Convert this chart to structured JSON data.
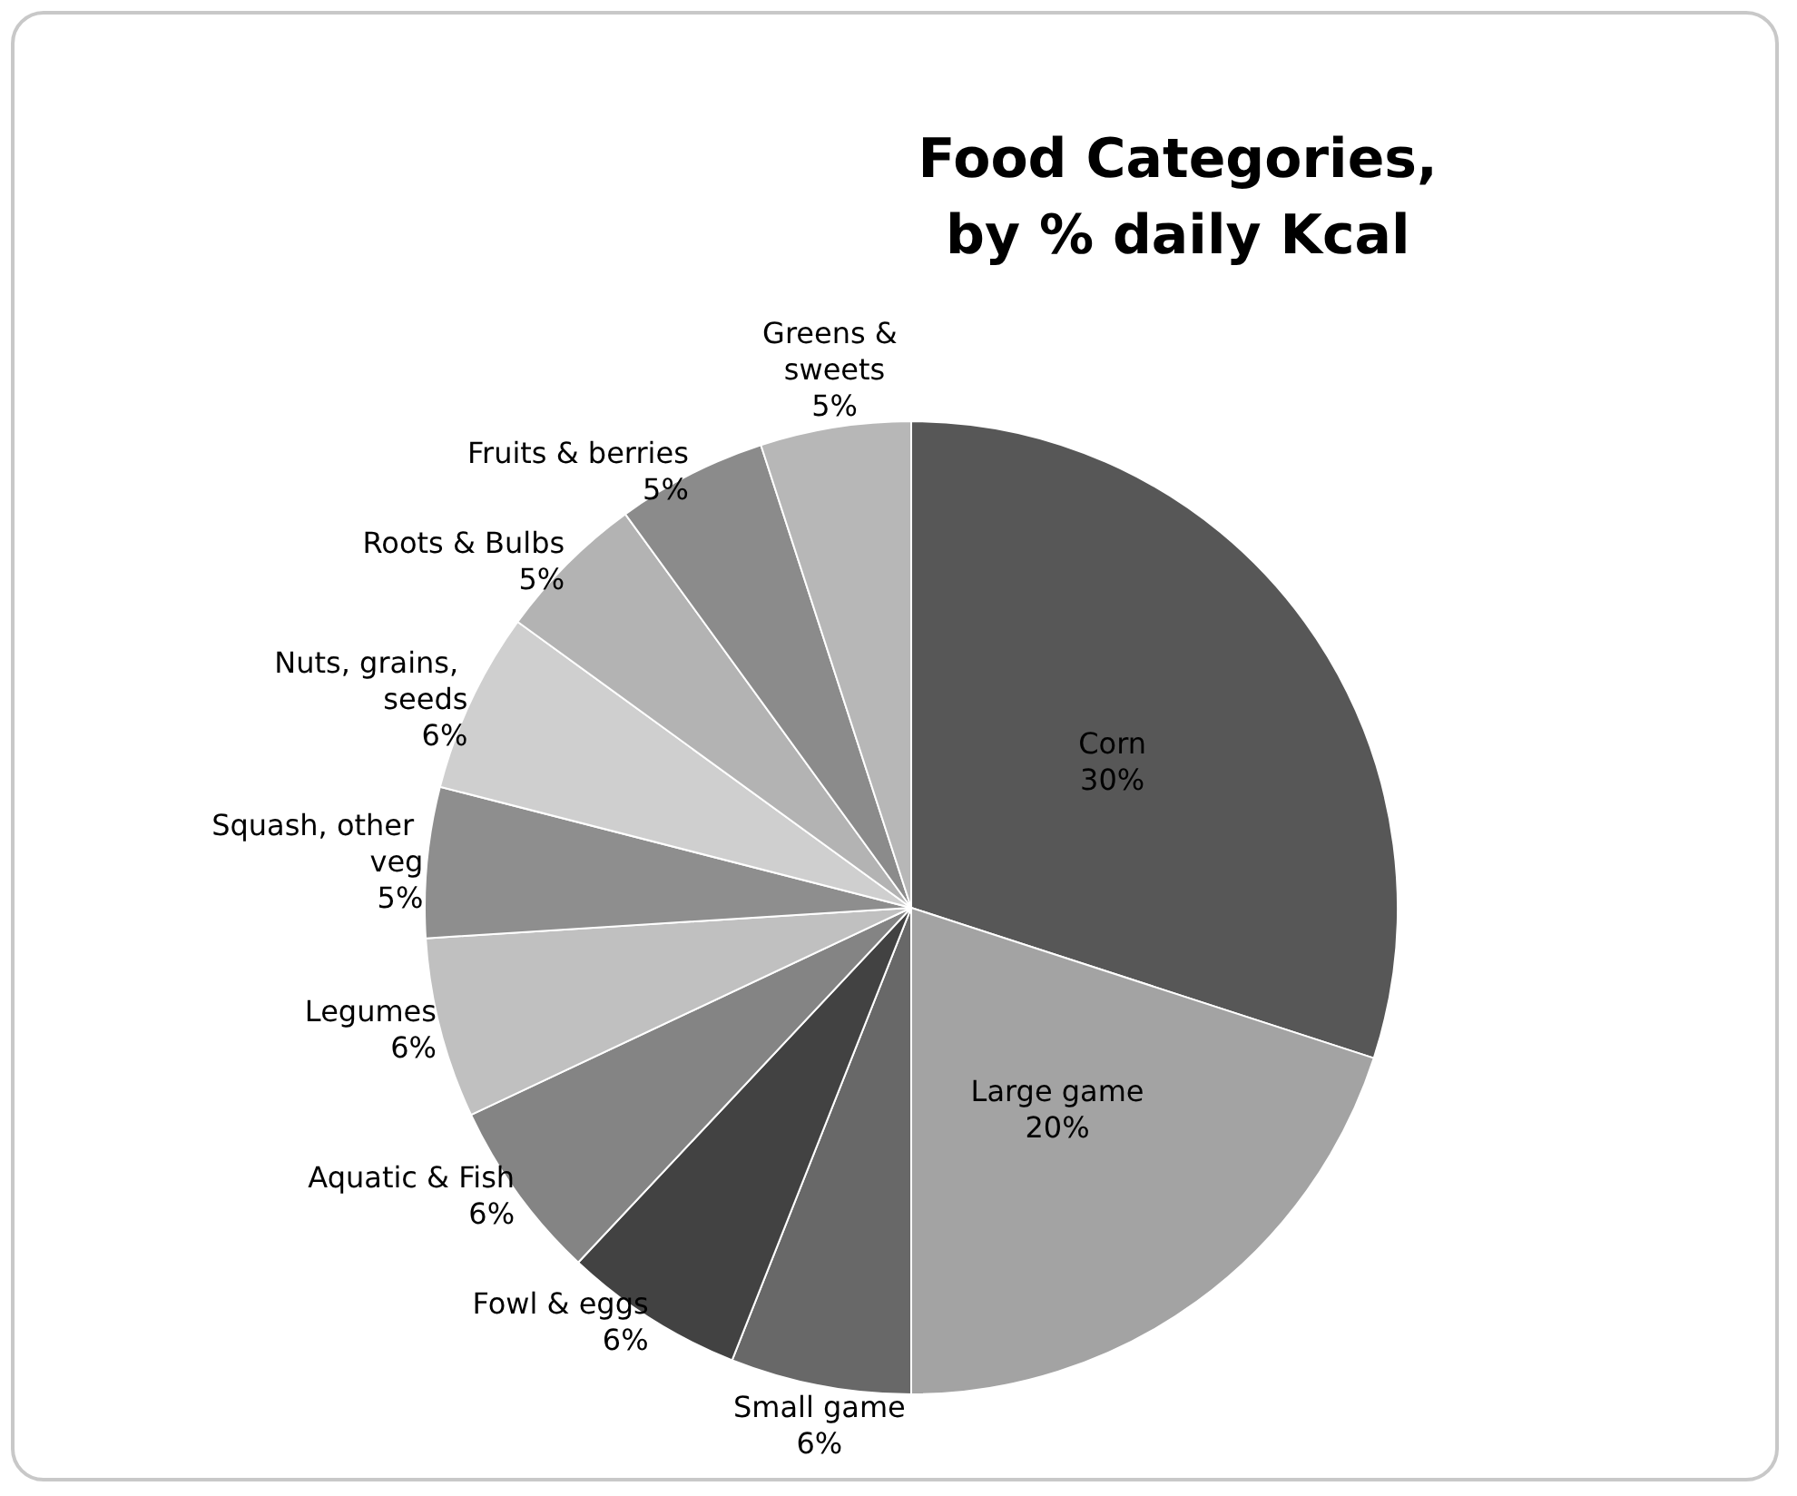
{
  "chart_data": {
    "type": "pie",
    "title": "Food Categories,\nby % daily Kcal",
    "categories": [
      "Corn",
      "Large game",
      "Small game",
      "Fowl & eggs",
      "Aquatic & Fish",
      "Legumes",
      "Squash, other veg",
      "Nuts, grains, seeds",
      "Roots & Bulbs",
      "Fruits & berries",
      "Greens & sweets"
    ],
    "values": [
      30,
      20,
      6,
      6,
      6,
      6,
      5,
      6,
      5,
      5,
      5
    ],
    "colors": [
      "#575757",
      "#a3a3a3",
      "#686868",
      "#424242",
      "#848484",
      "#c0c0c0",
      "#8e8e8e",
      "#cfcfcf",
      "#b3b3b3",
      "#8b8b8b",
      "#b7b7b7"
    ],
    "value_labels": [
      "30%",
      "20%",
      "6%",
      "6%",
      "6%",
      "6%",
      "5%",
      "6%",
      "5%",
      "5%",
      "5%"
    ],
    "legend": false
  }
}
